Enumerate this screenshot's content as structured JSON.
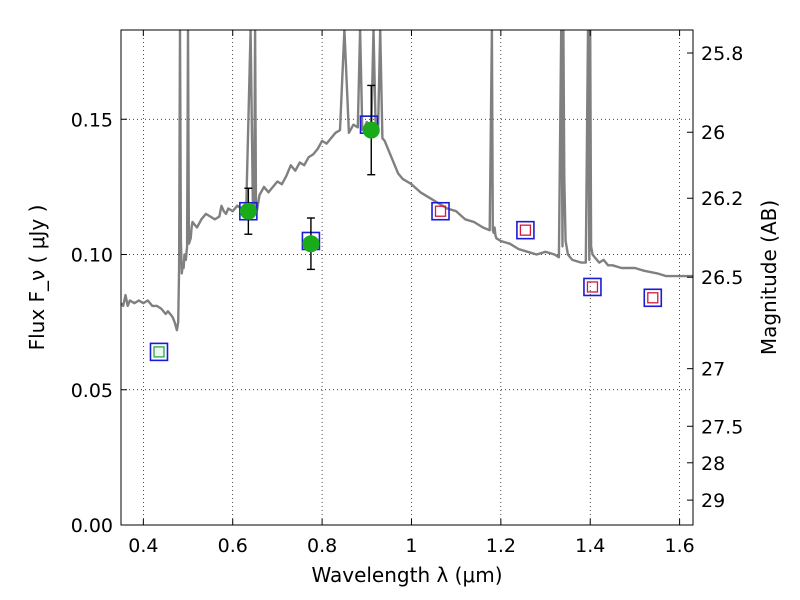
{
  "chart_data": {
    "type": "scatter",
    "xlabel": "Wavelength  λ (μm)",
    "ylabel": "Flux  F_ν  ( μJy )",
    "y2label": "Magnitude (AB)",
    "xlim": [
      0.35,
      1.63
    ],
    "ylim": [
      0.0,
      0.183
    ],
    "grid": true,
    "x_ticks": [
      0.4,
      0.6,
      0.8,
      1.0,
      1.2,
      1.4,
      1.6
    ],
    "x_tick_labels": [
      "0.4",
      "0.6",
      "0.8",
      "1",
      "1.2",
      "1.4",
      "1.6"
    ],
    "y_ticks": [
      0.0,
      0.05,
      0.1,
      0.15
    ],
    "y_tick_labels": [
      "0.00",
      "0.05",
      "0.10",
      "0.15"
    ],
    "y2_ticks": [
      {
        "label": "25.8",
        "flux": 0.1745
      },
      {
        "label": "26",
        "flux": 0.1452
      },
      {
        "label": "26.2",
        "flux": 0.1208
      },
      {
        "label": "26.5",
        "flux": 0.0916
      },
      {
        "label": "27",
        "flux": 0.0578
      },
      {
        "label": "27.5",
        "flux": 0.0365
      },
      {
        "label": "28",
        "flux": 0.023
      },
      {
        "label": "29",
        "flux": 0.0092
      }
    ],
    "colors": {
      "model": "#808080",
      "observed": "#1aab1a",
      "model_box": "#1a1ad9",
      "inner_red": "#d11a3c",
      "inner_green": "#2aa84a"
    },
    "model_spectrum": {
      "name": "model spectrum",
      "x": [
        0.35,
        0.355,
        0.36,
        0.365,
        0.37,
        0.38,
        0.39,
        0.4,
        0.41,
        0.42,
        0.43,
        0.44,
        0.45,
        0.455,
        0.46,
        0.465,
        0.47,
        0.475,
        0.478,
        0.48,
        0.482,
        0.484,
        0.486,
        0.488,
        0.49,
        0.492,
        0.495,
        0.498,
        0.5,
        0.502,
        0.504,
        0.506,
        0.508,
        0.51,
        0.515,
        0.52,
        0.53,
        0.54,
        0.55,
        0.56,
        0.57,
        0.575,
        0.58,
        0.585,
        0.59,
        0.6,
        0.61,
        0.62,
        0.63,
        0.64,
        0.645,
        0.648,
        0.65,
        0.652,
        0.655,
        0.658,
        0.66,
        0.67,
        0.68,
        0.69,
        0.7,
        0.71,
        0.72,
        0.73,
        0.74,
        0.75,
        0.76,
        0.77,
        0.78,
        0.79,
        0.8,
        0.81,
        0.82,
        0.83,
        0.84,
        0.85,
        0.86,
        0.87,
        0.88,
        0.885,
        0.89,
        0.895,
        0.9,
        0.905,
        0.91,
        0.915,
        0.92,
        0.925,
        0.93,
        0.935,
        0.94,
        0.95,
        0.96,
        0.97,
        0.98,
        0.99,
        1.0,
        1.02,
        1.04,
        1.06,
        1.08,
        1.1,
        1.12,
        1.14,
        1.16,
        1.175,
        1.18,
        1.182,
        1.184,
        1.186,
        1.188,
        1.19,
        1.2,
        1.22,
        1.24,
        1.26,
        1.28,
        1.3,
        1.32,
        1.33,
        1.335,
        1.338,
        1.34,
        1.342,
        1.345,
        1.348,
        1.35,
        1.355,
        1.36,
        1.38,
        1.39,
        1.395,
        1.398,
        1.4,
        1.402,
        1.405,
        1.41,
        1.42,
        1.43,
        1.44,
        1.45,
        1.47,
        1.5,
        1.52,
        1.55,
        1.57,
        1.6,
        1.63
      ],
      "y": [
        0.082,
        0.081,
        0.085,
        0.081,
        0.083,
        0.082,
        0.083,
        0.082,
        0.083,
        0.081,
        0.081,
        0.08,
        0.078,
        0.079,
        0.078,
        0.077,
        0.075,
        0.072,
        0.075,
        0.095,
        0.183,
        0.105,
        0.093,
        0.096,
        0.095,
        0.1,
        0.098,
        0.103,
        0.183,
        0.104,
        0.105,
        0.106,
        0.11,
        0.112,
        0.111,
        0.11,
        0.113,
        0.115,
        0.114,
        0.113,
        0.114,
        0.118,
        0.116,
        0.115,
        0.117,
        0.116,
        0.118,
        0.117,
        0.115,
        0.183,
        0.12,
        0.118,
        0.183,
        0.115,
        0.117,
        0.12,
        0.122,
        0.125,
        0.123,
        0.125,
        0.127,
        0.126,
        0.129,
        0.133,
        0.131,
        0.134,
        0.133,
        0.136,
        0.137,
        0.139,
        0.142,
        0.141,
        0.143,
        0.145,
        0.146,
        0.183,
        0.145,
        0.148,
        0.147,
        0.183,
        0.146,
        0.147,
        0.149,
        0.148,
        0.147,
        0.183,
        0.146,
        0.145,
        0.183,
        0.143,
        0.142,
        0.138,
        0.134,
        0.13,
        0.128,
        0.127,
        0.126,
        0.123,
        0.121,
        0.119,
        0.117,
        0.116,
        0.113,
        0.112,
        0.11,
        0.109,
        0.183,
        0.109,
        0.108,
        0.11,
        0.107,
        0.106,
        0.105,
        0.104,
        0.102,
        0.101,
        0.1,
        0.101,
        0.1,
        0.099,
        0.183,
        0.103,
        0.183,
        0.128,
        0.105,
        0.102,
        0.1,
        0.099,
        0.098,
        0.097,
        0.097,
        0.183,
        0.098,
        0.183,
        0.103,
        0.1,
        0.099,
        0.097,
        0.098,
        0.096,
        0.096,
        0.095,
        0.095,
        0.094,
        0.093,
        0.092,
        0.092,
        0.092
      ]
    },
    "observed": {
      "name": "observed photometry",
      "points": [
        {
          "x": 0.635,
          "y": 0.116,
          "err": 0.0085
        },
        {
          "x": 0.775,
          "y": 0.104,
          "err": 0.0095
        },
        {
          "x": 0.91,
          "y": 0.146,
          "err": 0.0165
        }
      ]
    },
    "model_photometry": {
      "name": "model photometry",
      "points": [
        {
          "x": 0.435,
          "y": 0.064,
          "inner": "green"
        },
        {
          "x": 0.635,
          "y": 0.116,
          "inner": "none"
        },
        {
          "x": 0.775,
          "y": 0.105,
          "inner": "none"
        },
        {
          "x": 0.905,
          "y": 0.148,
          "inner": "none"
        },
        {
          "x": 1.065,
          "y": 0.116,
          "inner": "red"
        },
        {
          "x": 1.255,
          "y": 0.109,
          "inner": "red"
        },
        {
          "x": 1.405,
          "y": 0.088,
          "inner": "red"
        },
        {
          "x": 1.54,
          "y": 0.084,
          "inner": "red"
        }
      ]
    }
  }
}
